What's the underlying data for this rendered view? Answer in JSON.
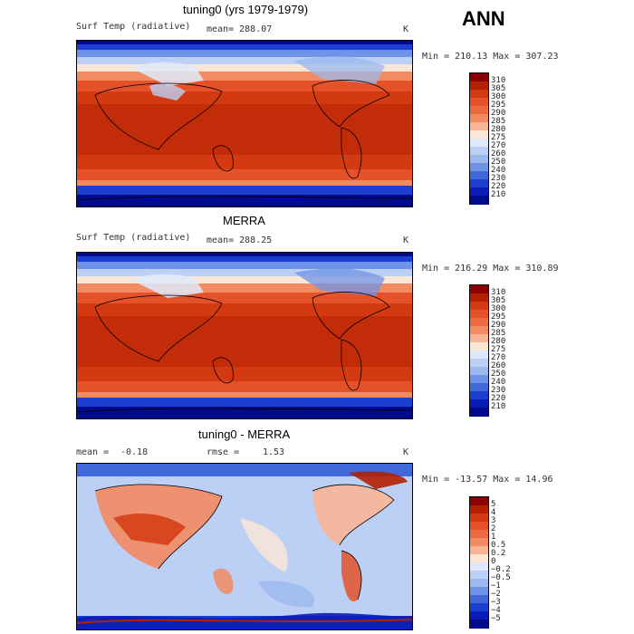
{
  "season": "ANN",
  "panels": [
    {
      "title": "tuning0 (yrs 1979-1979)",
      "variable": "Surf Temp (radiative)",
      "mean": "mean= 288.07",
      "units": "K",
      "minmax": "Min = 210.13 Max = 307.23",
      "colorbar": {
        "labels": [
          "310",
          "305",
          "300",
          "295",
          "290",
          "285",
          "280",
          "275",
          "270",
          "260",
          "250",
          "240",
          "230",
          "220",
          "210"
        ],
        "colors": [
          "#8b0000",
          "#b22000",
          "#d43a12",
          "#e5522a",
          "#ec6a40",
          "#f28a62",
          "#f8b596",
          "#fce6d6",
          "#dfe9fb",
          "#bcd0f5",
          "#9bb8ef",
          "#6f93e6",
          "#4068d9",
          "#1c3fd0",
          "#0a1cb8",
          "#000a8c"
        ]
      }
    },
    {
      "title": "MERRA",
      "variable": "Surf Temp (radiative)",
      "mean": "mean= 288.25",
      "units": "K",
      "minmax": "Min = 216.29 Max = 310.89",
      "colorbar": {
        "labels": [
          "310",
          "305",
          "300",
          "295",
          "290",
          "285",
          "280",
          "275",
          "270",
          "260",
          "250",
          "240",
          "230",
          "220",
          "210"
        ],
        "colors": [
          "#8b0000",
          "#b22000",
          "#d43a12",
          "#e5522a",
          "#ec6a40",
          "#f28a62",
          "#f8b596",
          "#fce6d6",
          "#dfe9fb",
          "#bcd0f5",
          "#9bb8ef",
          "#6f93e6",
          "#4068d9",
          "#1c3fd0",
          "#0a1cb8",
          "#000a8c"
        ]
      }
    },
    {
      "title": "tuning0 - MERRA",
      "mean_label": "mean =",
      "mean_value": "-0.18",
      "rmse_label": "rmse =",
      "rmse_value": "1.53",
      "units": "K",
      "minmax": "Min = -13.57 Max =   14.96",
      "colorbar": {
        "labels": [
          "5",
          "4",
          "3",
          "2",
          "1",
          "0.5",
          "0.2",
          "0",
          "-0.2",
          "-0.5",
          "-1",
          "-2",
          "-3",
          "-4",
          "-5"
        ],
        "colors": [
          "#8b0000",
          "#b22000",
          "#d43a12",
          "#e5522a",
          "#ec6a40",
          "#f28a62",
          "#f8b596",
          "#fce6d6",
          "#dfe9fb",
          "#bcd0f5",
          "#9bb8ef",
          "#6f93e6",
          "#4068d9",
          "#1c3fd0",
          "#0a1cb8",
          "#000a8c"
        ]
      }
    }
  ]
}
